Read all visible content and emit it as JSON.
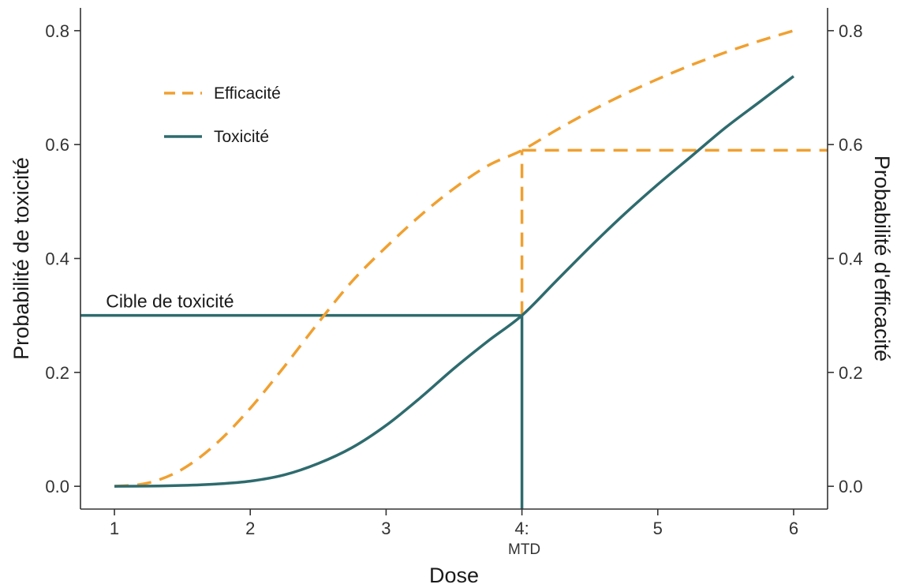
{
  "chart_data": {
    "type": "line",
    "xlabel": "Dose",
    "ylabel_left": "Probabilité de toxicité",
    "ylabel_right": "Probabilité d'efficacité",
    "xlim": [
      0.75,
      6.25
    ],
    "ylim": [
      -0.04,
      0.84
    ],
    "x_ticks": [
      {
        "value": 1,
        "label": "1"
      },
      {
        "value": 2,
        "label": "2"
      },
      {
        "value": 3,
        "label": "3"
      },
      {
        "value": 4,
        "label": "4:",
        "sublabel": "MTD"
      },
      {
        "value": 5,
        "label": "5"
      },
      {
        "value": 6,
        "label": "6"
      }
    ],
    "y_ticks": [
      {
        "value": 0.0,
        "label": "0.0"
      },
      {
        "value": 0.2,
        "label": "0.2"
      },
      {
        "value": 0.4,
        "label": "0.4"
      },
      {
        "value": 0.6,
        "label": "0.6"
      },
      {
        "value": 0.8,
        "label": "0.8"
      }
    ],
    "grid": false,
    "legend_position": "top-left",
    "series": [
      {
        "name": "Efficacité",
        "color": "#F0A030",
        "dash": "dashed",
        "x": [
          1.0,
          1.25,
          1.5,
          1.75,
          2.0,
          2.25,
          2.5,
          2.75,
          3.0,
          3.25,
          3.5,
          3.75,
          4.0,
          4.25,
          4.5,
          4.75,
          5.0,
          5.25,
          5.5,
          5.75,
          6.0
        ],
        "y": [
          0.0,
          0.006,
          0.03,
          0.075,
          0.137,
          0.21,
          0.287,
          0.36,
          0.42,
          0.475,
          0.523,
          0.563,
          0.59,
          0.625,
          0.658,
          0.688,
          0.715,
          0.74,
          0.762,
          0.782,
          0.8
        ]
      },
      {
        "name": "Toxicité",
        "color": "#2E6B6E",
        "dash": "solid",
        "x": [
          1.0,
          1.25,
          1.5,
          1.75,
          2.0,
          2.25,
          2.5,
          2.75,
          3.0,
          3.25,
          3.5,
          3.75,
          4.0,
          4.25,
          4.5,
          4.75,
          5.0,
          5.25,
          5.5,
          5.75,
          6.0
        ],
        "y": [
          0.0,
          0.0003,
          0.0015,
          0.004,
          0.009,
          0.02,
          0.04,
          0.068,
          0.107,
          0.155,
          0.207,
          0.255,
          0.3,
          0.36,
          0.42,
          0.477,
          0.53,
          0.58,
          0.63,
          0.675,
          0.72
        ]
      }
    ],
    "reference_lines": [
      {
        "name": "toxicity-target",
        "color": "#2E6B6E",
        "dash": "solid",
        "from": [
          0.75,
          0.3
        ],
        "to": [
          4.0,
          0.3
        ]
      },
      {
        "name": "mtd-vertical",
        "color": "#2E6B6E",
        "dash": "solid",
        "from": [
          4.0,
          -0.04
        ],
        "to": [
          4.0,
          0.3
        ]
      },
      {
        "name": "efficacy-vertical",
        "color": "#F0A030",
        "dash": "dashed",
        "from": [
          4.0,
          0.3
        ],
        "to": [
          4.0,
          0.59
        ]
      },
      {
        "name": "efficacy-horizontal",
        "color": "#F0A030",
        "dash": "dashed",
        "from": [
          4.0,
          0.59
        ],
        "to": [
          6.25,
          0.59
        ]
      }
    ],
    "annotations": [
      {
        "text": "Cible de toxicité",
        "x": 0.85,
        "y": 0.3
      }
    ]
  }
}
